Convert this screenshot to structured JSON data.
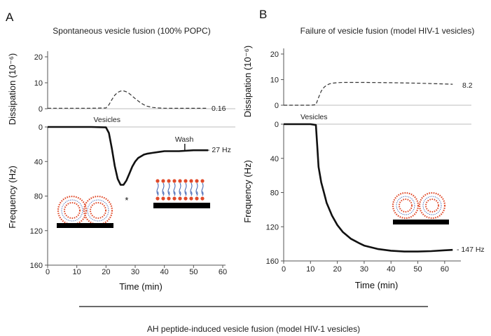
{
  "footer": {
    "caption": "AH peptide-induced vesicle fusion (model HIV-1 vesicles)"
  },
  "colors": {
    "trace": "#111111",
    "baseline": "#bdbdbd",
    "lipid_head": "#e04a2a",
    "lipid_tail": "#3a5fb0",
    "support": "#000000"
  },
  "chart_data": [
    {
      "type": "line",
      "panel": "A",
      "title": "Spontaneous vesicle fusion (100% POPC)",
      "xlabel": "Time (min)",
      "xlim": [
        0,
        60
      ],
      "x_ticks": [
        0,
        10,
        20,
        30,
        40,
        50,
        60
      ],
      "dissipation": {
        "ylabel": "Dissipation (10⁻⁶)",
        "ylim": [
          0,
          20
        ],
        "y_ticks": [
          0,
          10,
          20
        ],
        "x": [
          0,
          5,
          10,
          15,
          20,
          21,
          22,
          23,
          24,
          25,
          26,
          27,
          28,
          29,
          30,
          31,
          32,
          33,
          34,
          36,
          38,
          40,
          45,
          50,
          55
        ],
        "y": [
          0.2,
          0.2,
          0.2,
          0.2,
          0.3,
          1.5,
          3.5,
          5.2,
          6.3,
          6.8,
          6.9,
          6.5,
          5.8,
          4.9,
          3.9,
          3.0,
          2.2,
          1.5,
          1.0,
          0.5,
          0.3,
          0.2,
          0.15,
          0.16,
          0.16
        ],
        "end_label": "0.16",
        "style": "dashed"
      },
      "frequency": {
        "ylabel": "Frequency (Hz)",
        "ylim": [
          160,
          0
        ],
        "y_ticks": [
          0,
          40,
          80,
          120,
          160
        ],
        "x": [
          0,
          5,
          10,
          15,
          20,
          21,
          22,
          23,
          24,
          25,
          26,
          27,
          28,
          29,
          30,
          31,
          32,
          33,
          34,
          36,
          38,
          40,
          45,
          50,
          55
        ],
        "y": [
          0,
          0,
          0,
          0,
          0.5,
          7,
          25,
          45,
          60,
          67,
          67,
          62,
          54,
          46,
          40,
          36,
          34,
          32,
          31,
          30,
          29,
          28,
          28,
          27,
          27
        ],
        "end_label": "- 27 Hz"
      },
      "annotations": [
        {
          "text": "Vesicles",
          "x": 21
        },
        {
          "text": "Wash",
          "x": 47
        },
        {
          "text": "*",
          "x": 26
        }
      ]
    },
    {
      "type": "line",
      "panel": "B",
      "title": "Failure of vesicle fusion (model HIV-1 vesicles)",
      "xlabel": "Time (min)",
      "xlim": [
        0,
        65
      ],
      "x_ticks": [
        0,
        10,
        20,
        30,
        40,
        50,
        60
      ],
      "dissipation": {
        "ylabel": "Dissipation (10⁻⁶)",
        "ylim": [
          0,
          20
        ],
        "y_ticks": [
          0,
          10,
          20
        ],
        "x": [
          0,
          5,
          10,
          12,
          13,
          14,
          15,
          16,
          17,
          18,
          20,
          22,
          25,
          30,
          40,
          50,
          60,
          63
        ],
        "y": [
          0,
          0,
          0,
          0.2,
          3,
          5.5,
          7,
          7.8,
          8.3,
          8.6,
          8.8,
          8.9,
          8.9,
          8.9,
          8.8,
          8.6,
          8.3,
          8.2
        ],
        "end_label": "8.2",
        "style": "dashed"
      },
      "frequency": {
        "ylabel": "Frequency (Hz)",
        "ylim": [
          160,
          0
        ],
        "y_ticks": [
          0,
          40,
          80,
          120,
          160
        ],
        "x": [
          0,
          5,
          10,
          12,
          12.5,
          13,
          14,
          15,
          16,
          18,
          20,
          22,
          25,
          28,
          30,
          35,
          40,
          45,
          50,
          55,
          60,
          63
        ],
        "y": [
          0,
          0,
          0,
          1,
          25,
          50,
          68,
          80,
          92,
          107,
          118,
          126,
          134,
          139,
          142,
          146,
          148,
          149,
          149,
          148.5,
          147.5,
          147
        ],
        "end_label": "- 147 Hz"
      },
      "annotations": [
        {
          "text": "Vesicles",
          "x": 12
        }
      ]
    }
  ]
}
